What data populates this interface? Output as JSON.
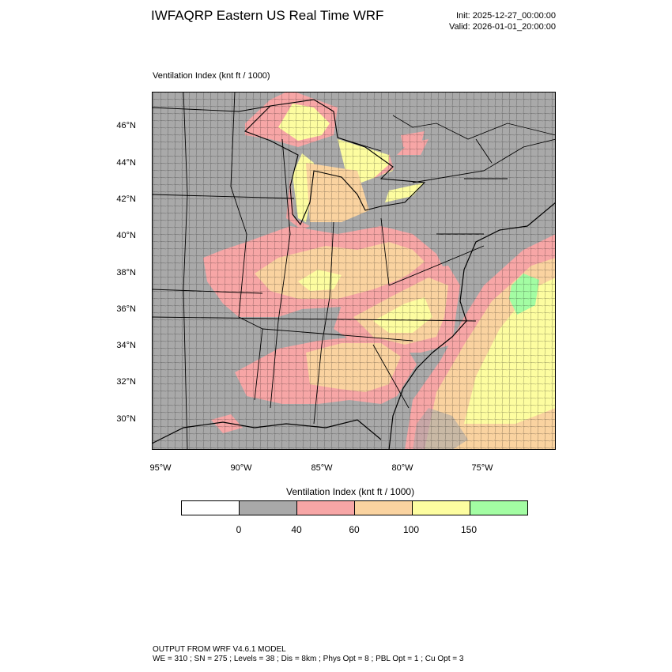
{
  "title": "IWFAQRP Eastern US Real Time WRF",
  "init_text": "Init: 2025-12-27_00:00:00",
  "valid_text": "Valid: 2026-01-01_20:00:00",
  "field_label": "Ventilation Index   (knt ft / 1000)",
  "lat_labels": [
    "46°N",
    "44°N",
    "42°N",
    "40°N",
    "38°N",
    "36°N",
    "34°N",
    "32°N",
    "30°N"
  ],
  "lon_labels": [
    "95°W",
    "90°W",
    "85°W",
    "80°W",
    "75°W"
  ],
  "colorbar": {
    "title": "Ventilation Index  (knt ft / 1000)",
    "ticks": [
      "0",
      "40",
      "60",
      "100",
      "150"
    ],
    "colors": [
      "#ffffff",
      "#a9a9a9",
      "#f7a6a6",
      "#fad3a0",
      "#fdfda0",
      "#a3fda3"
    ]
  },
  "colors": {
    "water": "#a9a9a9",
    "land_low": "#a9a9a9",
    "level_40_60": "#f7a6a6",
    "level_60_100": "#fad3a0",
    "level_100_150": "#fdfda0",
    "level_150_plus": "#a3fda3"
  },
  "footer": {
    "line1": "OUTPUT FROM WRF V4.6.1 MODEL",
    "line2": "WE = 310 ; SN = 275 ; Levels = 38 ; Dis = 8km ; Phys Opt = 8 ; PBL Opt = 1 ; Cu Opt = 3"
  }
}
